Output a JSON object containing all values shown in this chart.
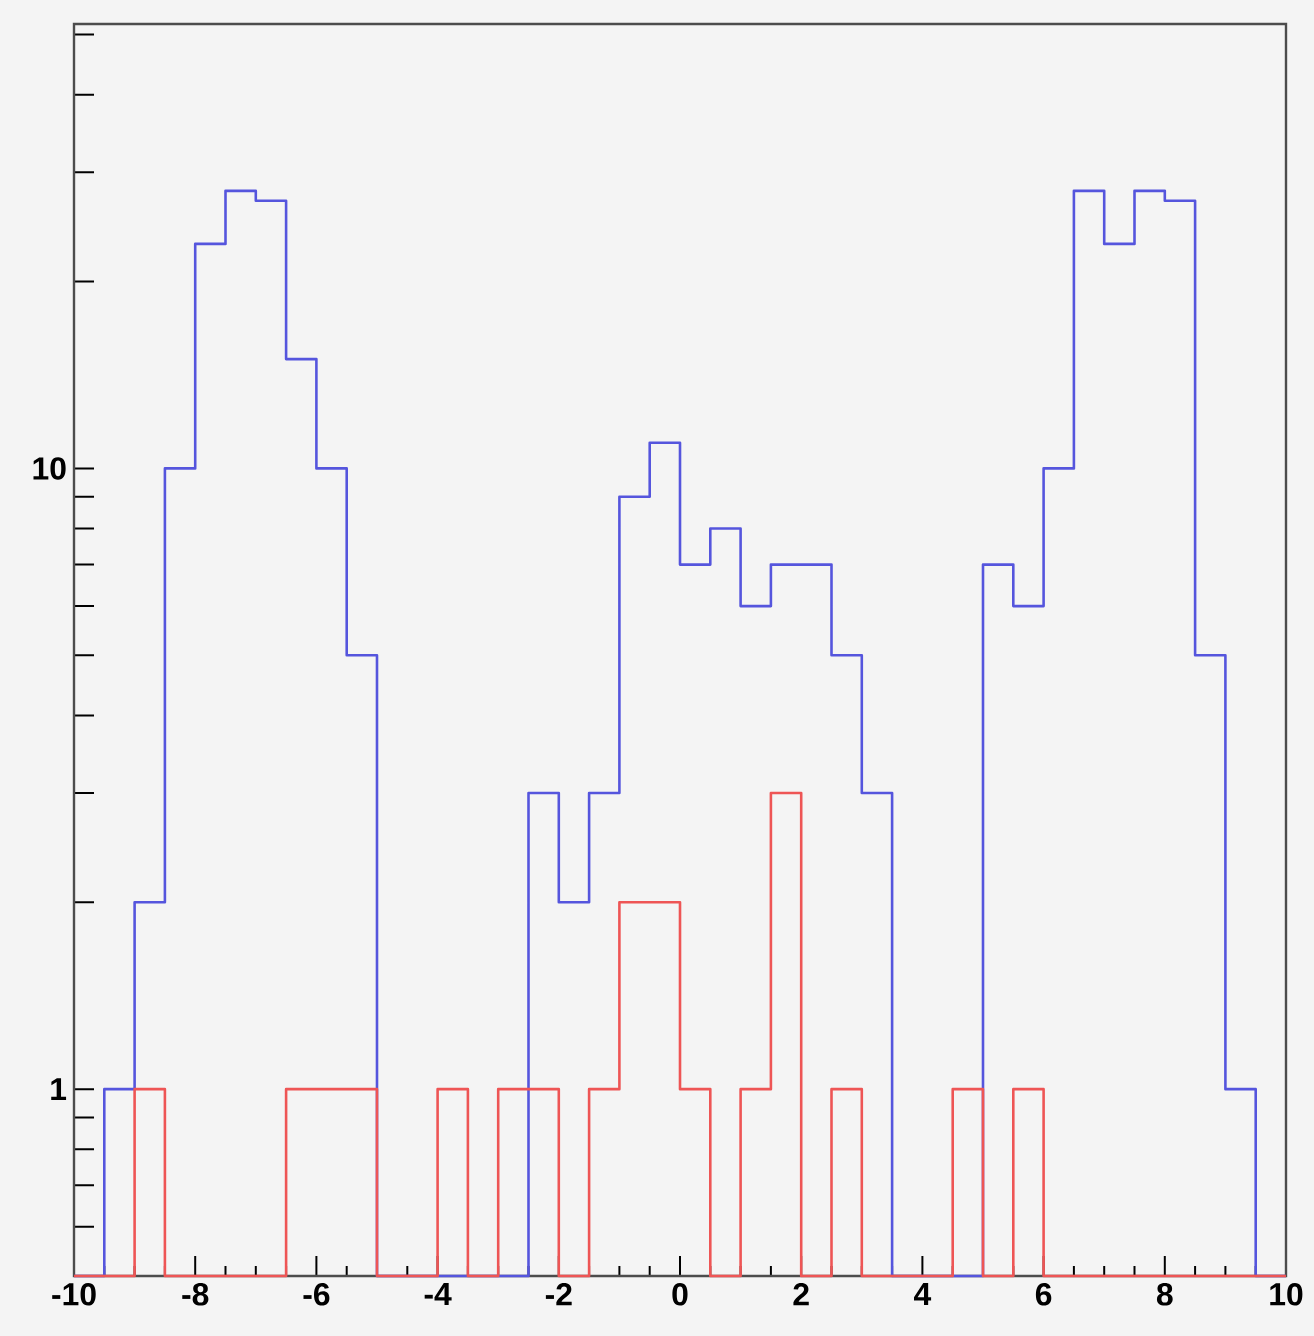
{
  "chart_data": {
    "type": "histogram",
    "bins": [
      -10,
      -9.5,
      -9,
      -8.5,
      -8,
      -7.5,
      -7,
      -6.5,
      -6,
      -5.5,
      -5,
      -4.5,
      -4,
      -3.5,
      -3,
      -2.5,
      -2,
      -1.5,
      -1,
      -0.5,
      0,
      0.5,
      1,
      1.5,
      2,
      2.5,
      3,
      3.5,
      4,
      4.5,
      5,
      5.5,
      6,
      6.5,
      7,
      7.5,
      8,
      8.5,
      9,
      9.5,
      10
    ],
    "series": [
      {
        "color": "#5555dd",
        "values": [
          null,
          1,
          2,
          10,
          23,
          28,
          27,
          15,
          10,
          5,
          null,
          null,
          null,
          null,
          null,
          3,
          2,
          3,
          9,
          11,
          7,
          8,
          6,
          7,
          7,
          5,
          3,
          null,
          null,
          null,
          7,
          6,
          10,
          28,
          23,
          28,
          27,
          5,
          1,
          null
        ]
      },
      {
        "color": "#ee5555",
        "values": [
          null,
          null,
          1,
          null,
          null,
          null,
          null,
          1,
          1,
          1,
          null,
          null,
          1,
          null,
          1,
          1,
          null,
          1,
          2,
          2,
          1,
          null,
          1,
          3,
          null,
          1,
          null,
          null,
          null,
          1,
          null,
          1,
          null,
          null,
          null,
          null,
          null,
          null,
          null,
          null
        ]
      }
    ],
    "log": "y",
    "xlim": [
      -10,
      10
    ],
    "xticks": [
      -10,
      -8,
      -6,
      -4,
      -2,
      0,
      2,
      4,
      6,
      8,
      10
    ],
    "ylim": [
      0.5,
      52
    ],
    "yticks": [
      {
        "value": 0.6,
        "label": null
      },
      {
        "value": 0.7,
        "label": null
      },
      {
        "value": 0.8,
        "label": null
      },
      {
        "value": 0.9,
        "label": null
      },
      1,
      {
        "value": 2,
        "label": null
      },
      {
        "value": 3,
        "label": null
      },
      {
        "value": 4,
        "label": null
      },
      {
        "value": 5,
        "label": null
      },
      {
        "value": 6,
        "label": null
      },
      {
        "value": 7,
        "label": null
      },
      {
        "value": 8,
        "label": null
      },
      {
        "value": 9,
        "label": null
      },
      10,
      {
        "value": 20,
        "label": null
      },
      {
        "value": 30,
        "label": null
      },
      {
        "value": 40,
        "label": null
      },
      {
        "value": 50,
        "label": null
      }
    ],
    "tick_labels": "xy"
  }
}
